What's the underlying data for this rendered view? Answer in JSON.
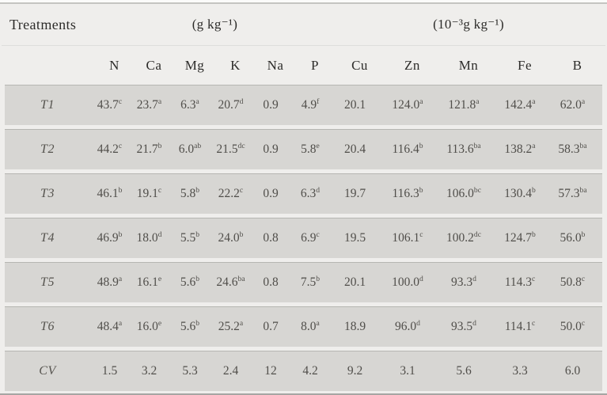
{
  "theme": {
    "page_bg": "#efeeec",
    "row_band_bg": "#d7d6d3",
    "rule_top": "#c4c4c1",
    "rule_bottom": "#a6a6a3",
    "header_text": "#2d2c2a",
    "data_text": "#504e4a"
  },
  "table": {
    "treatments_label": "Treatments",
    "group_units": {
      "macro": "(g kg⁻¹)",
      "micro": "(10⁻³g kg⁻¹)"
    },
    "columns": [
      "N",
      "Ca",
      "Mg",
      "K",
      "Na",
      "P",
      "Cu",
      "Zn",
      "Mn",
      "Fe",
      "B"
    ],
    "rows": [
      {
        "label": "T1",
        "cells": [
          [
            "43.7",
            "c"
          ],
          [
            "23.7",
            "a"
          ],
          [
            "6.3",
            "a"
          ],
          [
            "20.7",
            "d"
          ],
          [
            "0.9",
            ""
          ],
          [
            "4.9",
            "f"
          ],
          [
            "20.1",
            ""
          ],
          [
            "124.0",
            "a"
          ],
          [
            "121.8",
            "a"
          ],
          [
            "142.4",
            "a"
          ],
          [
            "62.0",
            "a"
          ]
        ]
      },
      {
        "label": "T2",
        "cells": [
          [
            "44.2",
            "c"
          ],
          [
            "21.7",
            "b"
          ],
          [
            "6.0",
            "ab"
          ],
          [
            "21.5",
            "dc"
          ],
          [
            "0.9",
            ""
          ],
          [
            "5.8",
            "e"
          ],
          [
            "20.4",
            ""
          ],
          [
            "116.4",
            "b"
          ],
          [
            "113.6",
            "ba"
          ],
          [
            "138.2",
            "a"
          ],
          [
            "58.3",
            "ba"
          ]
        ]
      },
      {
        "label": "T3",
        "cells": [
          [
            "46.1",
            "b"
          ],
          [
            "19.1",
            "c"
          ],
          [
            "5.8",
            "b"
          ],
          [
            "22.2",
            "c"
          ],
          [
            "0.9",
            ""
          ],
          [
            "6.3",
            "d"
          ],
          [
            "19.7",
            ""
          ],
          [
            "116.3",
            "b"
          ],
          [
            "106.0",
            "bc"
          ],
          [
            "130.4",
            "b"
          ],
          [
            "57.3",
            "ba"
          ]
        ]
      },
      {
        "label": "T4",
        "cells": [
          [
            "46.9",
            "b"
          ],
          [
            "18.0",
            "d"
          ],
          [
            "5.5",
            "b"
          ],
          [
            "24.0",
            "b"
          ],
          [
            "0.8",
            ""
          ],
          [
            "6.9",
            "c"
          ],
          [
            "19.5",
            ""
          ],
          [
            "106.1",
            "c"
          ],
          [
            "100.2",
            "dc"
          ],
          [
            "124.7",
            "b"
          ],
          [
            "56.0",
            "b"
          ]
        ]
      },
      {
        "label": "T5",
        "cells": [
          [
            "48.9",
            "a"
          ],
          [
            "16.1",
            "e"
          ],
          [
            "5.6",
            "b"
          ],
          [
            "24.6",
            "ba"
          ],
          [
            "0.8",
            ""
          ],
          [
            "7.5",
            "b"
          ],
          [
            "20.1",
            ""
          ],
          [
            "100.0",
            "d"
          ],
          [
            "93.3",
            "d"
          ],
          [
            "114.3",
            "c"
          ],
          [
            "50.8",
            "c"
          ]
        ]
      },
      {
        "label": "T6",
        "cells": [
          [
            "48.4",
            "a"
          ],
          [
            "16.0",
            "e"
          ],
          [
            "5.6",
            "b"
          ],
          [
            "25.2",
            "a"
          ],
          [
            "0.7",
            ""
          ],
          [
            "8.0",
            "a"
          ],
          [
            "18.9",
            ""
          ],
          [
            "96.0",
            "d"
          ],
          [
            "93.5",
            "d"
          ],
          [
            "114.1",
            "c"
          ],
          [
            "50.0",
            "c"
          ]
        ]
      },
      {
        "label": "CV",
        "cells": [
          [
            "1.5",
            ""
          ],
          [
            "3.2",
            ""
          ],
          [
            "5.3",
            ""
          ],
          [
            "2.4",
            ""
          ],
          [
            "12",
            ""
          ],
          [
            "4.2",
            ""
          ],
          [
            "9.2",
            ""
          ],
          [
            "3.1",
            ""
          ],
          [
            "5.6",
            ""
          ],
          [
            "3.3",
            ""
          ],
          [
            "6.0",
            ""
          ]
        ]
      }
    ]
  }
}
